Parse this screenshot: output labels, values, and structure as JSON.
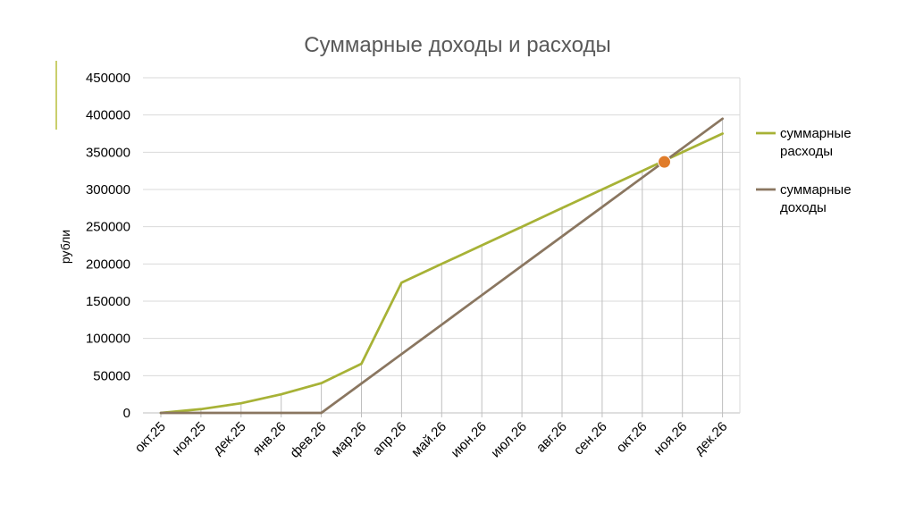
{
  "colors": {
    "expenses": "#a7b236",
    "income": "#8a7660",
    "marker": "#e07c2a",
    "grid": "#d9d9d9",
    "drop": "#bfbfbf",
    "accent": "#c9cf6c"
  },
  "chart_data": {
    "type": "line",
    "title": "Суммарные доходы и расходы",
    "xlabel": "",
    "ylabel": "рубли",
    "ylim": [
      0,
      450000
    ],
    "yticks": [
      0,
      50000,
      100000,
      150000,
      200000,
      250000,
      300000,
      350000,
      400000,
      450000
    ],
    "grid": true,
    "legend_position": "right",
    "categories": [
      "окт.25",
      "ноя.25",
      "дек.25",
      "янв.26",
      "фев.26",
      "мар.26",
      "апр.26",
      "май.26",
      "июн.26",
      "июл.26",
      "авг.26",
      "сен.26",
      "окт.26",
      "ноя.26",
      "дек.26"
    ],
    "series": [
      {
        "name": "суммарные расходы",
        "values": [
          0,
          5000,
          13000,
          25000,
          40000,
          66000,
          175000,
          200000,
          225000,
          250000,
          275000,
          300000,
          325000,
          350000,
          375000
        ]
      },
      {
        "name": "суммарные доходы",
        "values": [
          0,
          0,
          0,
          0,
          0,
          39500,
          79000,
          118500,
          158000,
          197500,
          237000,
          276500,
          316000,
          355500,
          395000
        ]
      }
    ],
    "annotations": [
      {
        "type": "intersection-marker",
        "x": 12.55,
        "y": 337000
      }
    ]
  }
}
